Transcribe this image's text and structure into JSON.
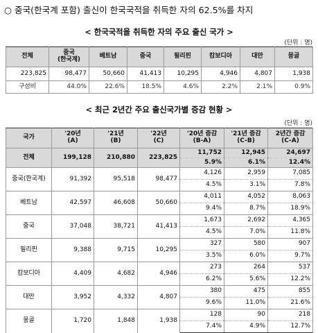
{
  "headline": "○ 중국(한국계 포함) 출신이 한국국적을 취득한 자의 62.5%를 차지",
  "section1": {
    "title": "< 한국국적을 취득한 자의 주요 출신 국가 >",
    "unit": "(단위 : 명)",
    "headers": [
      "전체",
      "중국\n(한국계)",
      "베트남",
      "중국",
      "필리핀",
      "캄보디아",
      "대만",
      "몽골"
    ],
    "values": [
      "223,825",
      "98,477",
      "50,660",
      "41,413",
      "10,295",
      "4,946",
      "4,807",
      "1,938"
    ],
    "share_label": "구성비",
    "shares": [
      "44.0%",
      "22.6%",
      "18.5%",
      "4.6%",
      "2.2%",
      "2.1%",
      "0.9%"
    ]
  },
  "section2": {
    "title": "< 최근 2년간 주요 출신국가별 증감 현황 >",
    "unit": "(단위 : 명)",
    "headers": [
      "국가",
      "'20년\n(A)",
      "'21년\n(B)",
      "'22년\n(C)",
      "'20년 증감\n(B-A)",
      "'21년 증감\n(C-B)",
      "2년간 증감\n(C-A)"
    ],
    "rows": [
      {
        "country": "전체",
        "y20": "199,128",
        "y21": "210,880",
        "y22": "223,825",
        "d1": "11,752",
        "d1p": "5.9%",
        "d2": "12,945",
        "d2p": "6.1%",
        "d3": "24,697",
        "d3p": "12.4%"
      },
      {
        "country": "중국(한국계)",
        "y20": "91,392",
        "y21": "95,518",
        "y22": "98,477",
        "d1": "4,126",
        "d1p": "4.5%",
        "d2": "2,959",
        "d2p": "3.1%",
        "d3": "7,085",
        "d3p": "7.8%"
      },
      {
        "country": "베트남",
        "y20": "42,597",
        "y21": "46,608",
        "y22": "50,660",
        "d1": "4,011",
        "d1p": "9.4%",
        "d2": "4,052",
        "d2p": "8.7%",
        "d3": "8,063",
        "d3p": "18.9%"
      },
      {
        "country": "중국",
        "y20": "37,048",
        "y21": "38,721",
        "y22": "41,413",
        "d1": "1,673",
        "d1p": "4.5%",
        "d2": "2,692",
        "d2p": "7.0%",
        "d3": "4,365",
        "d3p": "11.8%"
      },
      {
        "country": "필리핀",
        "y20": "9,388",
        "y21": "9,715",
        "y22": "10,295",
        "d1": "327",
        "d1p": "3.5%",
        "d2": "580",
        "d2p": "6.0%",
        "d3": "907",
        "d3p": "9.7%"
      },
      {
        "country": "캄보디아",
        "y20": "4,409",
        "y21": "4,682",
        "y22": "4,946",
        "d1": "273",
        "d1p": "6.2%",
        "d2": "264",
        "d2p": "5.6%",
        "d3": "537",
        "d3p": "12.2%"
      },
      {
        "country": "대만",
        "y20": "3,952",
        "y21": "4,332",
        "y22": "4,807",
        "d1": "380",
        "d1p": "9.6%",
        "d2": "475",
        "d2p": "11.0%",
        "d3": "855",
        "d3p": "21.6%"
      },
      {
        "country": "몽골",
        "y20": "1,720",
        "y21": "1,848",
        "y22": "1,938",
        "d1": "128",
        "d1p": "7.4%",
        "d2": "90",
        "d2p": "4.9%",
        "d3": "218",
        "d3p": "12.7%"
      }
    ]
  }
}
